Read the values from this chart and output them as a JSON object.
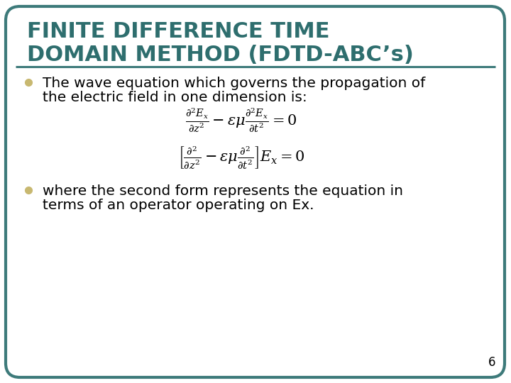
{
  "title_line1": "FINITE DIFFERENCE TIME",
  "title_line2": "DOMAIN METHOD (FDTD-ABC’s)",
  "title_color": "#2E6E6E",
  "bg_color": "#FFFFFF",
  "border_color": "#3D7A7A",
  "bullet_color": "#C8B870",
  "bullet1_text1": "The wave equation which governs the propagation of",
  "bullet1_text2": "the electric field in one dimension is:",
  "bullet2_text1": "where the second form represents the equation in",
  "bullet2_text2": "terms of an operator operating on Ex.",
  "page_number": "6",
  "body_text_color": "#000000",
  "body_fontsize": 14.5,
  "title_fontsize": 22
}
